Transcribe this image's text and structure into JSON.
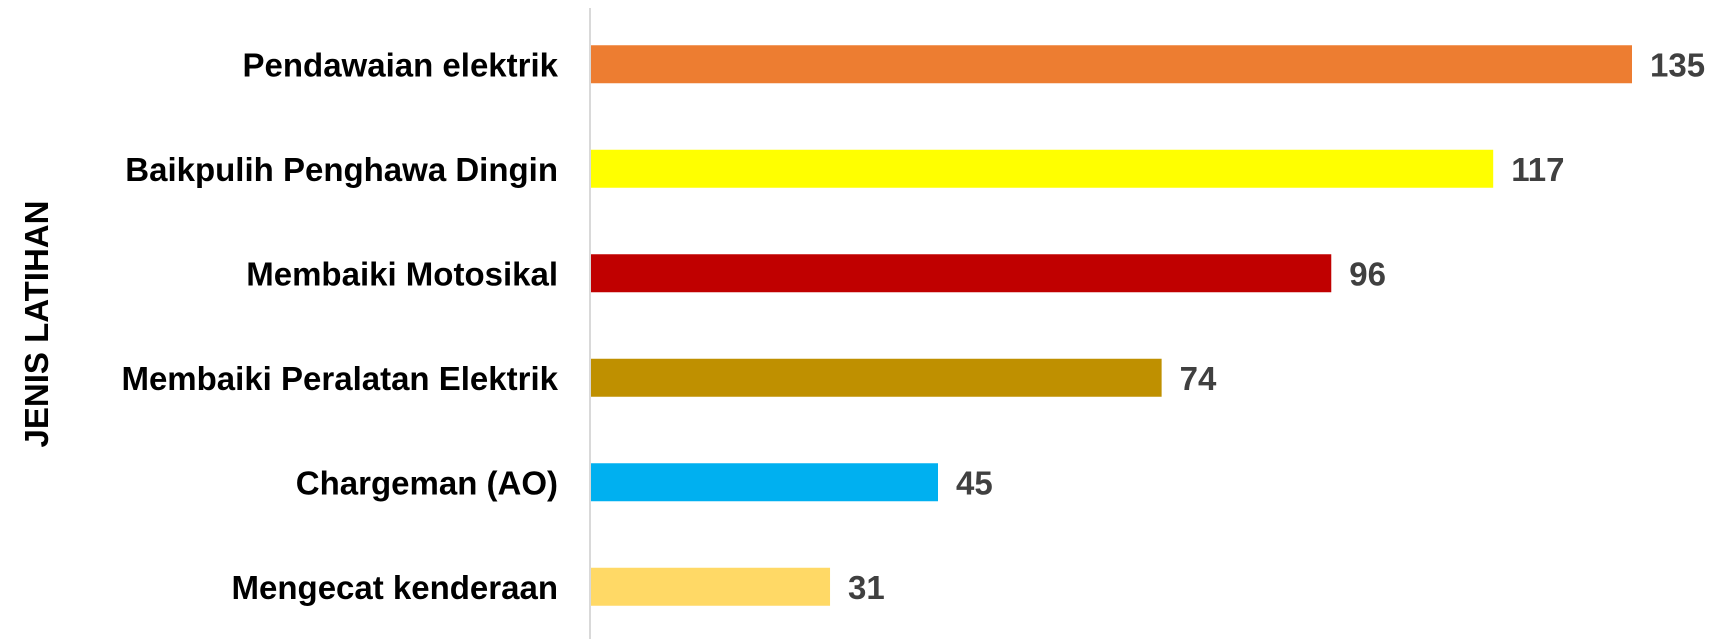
{
  "chart_data": {
    "type": "bar",
    "orientation": "horizontal",
    "title": "",
    "xlabel": "",
    "ylabel": "JENIS LATIHAN",
    "categories": [
      "Pendawaian elektrik",
      "Baikpulih Penghawa Dingin",
      "Membaiki Motosikal",
      "Membaiki Peralatan Elektrik",
      "Chargeman (AO)",
      "Mengecat kenderaan"
    ],
    "values": [
      135,
      117,
      96,
      74,
      45,
      31
    ],
    "colors": [
      "#ED7D31",
      "#FFFF00",
      "#C00000",
      "#BF9000",
      "#00B0F0",
      "#FFD966"
    ],
    "xlim": [
      0,
      135
    ],
    "grid": false,
    "legend": "none",
    "data_labels": true
  }
}
